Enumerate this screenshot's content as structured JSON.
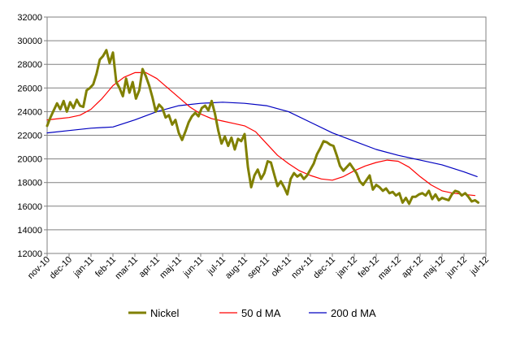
{
  "chart_data": {
    "type": "line",
    "title": "",
    "xlabel": "",
    "ylabel": "",
    "ylim": [
      12000,
      32000
    ],
    "yticks": [
      12000,
      14000,
      16000,
      18000,
      20000,
      22000,
      24000,
      26000,
      28000,
      30000,
      32000
    ],
    "ytick_labels": [
      "12000",
      "14000",
      "16000",
      "18000",
      "20000",
      "22000",
      "24000",
      "26000",
      "28000",
      "30000",
      "32000"
    ],
    "xtick_labels": [
      "nov-10",
      "dec-10",
      "jan-11",
      "feb-11",
      "mar-11",
      "apr-11",
      "maj-11",
      "jun-11",
      "jul-11",
      "aug-11",
      "sep-11",
      "okt-11",
      "nov-11",
      "dec-11",
      "jan-12",
      "feb-12",
      "mar-12",
      "apr-12",
      "maj-12",
      "jun-12",
      "jul-12"
    ],
    "grid": {
      "horizontal": true,
      "vertical": false
    },
    "legend_position": "bottom",
    "series": [
      {
        "name": "Nickel",
        "color": "#808000",
        "x": [
          0,
          0.15,
          0.3,
          0.45,
          0.6,
          0.75,
          0.9,
          1.05,
          1.2,
          1.35,
          1.5,
          1.65,
          1.8,
          1.95,
          2.1,
          2.25,
          2.4,
          2.55,
          2.7,
          2.85,
          3.0,
          3.15,
          3.3,
          3.45,
          3.6,
          3.75,
          3.9,
          4.05,
          4.2,
          4.35,
          4.5,
          4.65,
          4.8,
          4.95,
          5.1,
          5.25,
          5.4,
          5.55,
          5.7,
          5.85,
          6.0,
          6.15,
          6.3,
          6.45,
          6.6,
          6.75,
          6.9,
          7.05,
          7.2,
          7.35,
          7.5,
          7.65,
          7.8,
          7.95,
          8.1,
          8.25,
          8.4,
          8.55,
          8.7,
          8.85,
          9.0,
          9.15,
          9.3,
          9.45,
          9.6,
          9.75,
          9.9,
          10.05,
          10.2,
          10.35,
          10.5,
          10.65,
          10.8,
          10.95,
          11.1,
          11.25,
          11.4,
          11.55,
          11.7,
          11.85,
          12.0,
          12.15,
          12.3,
          12.45,
          12.6,
          12.75,
          12.9,
          13.05,
          13.2,
          13.35,
          13.5,
          13.65,
          13.8,
          13.95,
          14.1,
          14.25,
          14.4,
          14.55,
          14.7,
          14.85,
          15.0,
          15.15,
          15.3,
          15.45,
          15.6,
          15.75,
          15.9,
          16.05,
          16.2,
          16.35,
          16.5,
          16.65,
          16.8,
          16.95,
          17.1,
          17.25,
          17.4,
          17.55,
          17.7,
          17.85,
          18.0,
          18.15,
          18.3,
          18.45,
          18.6,
          18.75,
          18.9,
          19.05,
          19.2,
          19.35,
          19.5,
          19.65
        ],
        "values": [
          22800,
          23500,
          24100,
          24700,
          24200,
          24900,
          24000,
          24800,
          24300,
          25000,
          24500,
          24400,
          25800,
          26000,
          26300,
          27200,
          28400,
          28700,
          29200,
          28100,
          29000,
          26500,
          26000,
          25300,
          26800,
          25600,
          26500,
          25100,
          25800,
          27600,
          27000,
          26200,
          25200,
          24000,
          24600,
          24300,
          23500,
          23700,
          22900,
          23300,
          22200,
          21600,
          22300,
          23100,
          23600,
          23900,
          23600,
          24300,
          24500,
          24100,
          24900,
          23800,
          22400,
          21300,
          21900,
          21100,
          21800,
          20800,
          21700,
          21500,
          22100,
          19300,
          17600,
          18600,
          19100,
          18300,
          18800,
          19800,
          19700,
          18700,
          17700,
          18100,
          17600,
          17000,
          18300,
          18800,
          18500,
          18700,
          18300,
          18600,
          19100,
          19600,
          20400,
          20900,
          21500,
          21400,
          21200,
          21100,
          20300,
          19400,
          19000,
          19300,
          19600,
          19200,
          18800,
          18100,
          17800,
          18200,
          18600,
          17400,
          17800,
          17600,
          17300,
          17500,
          17100,
          17200,
          16900,
          17100,
          16300,
          16700,
          16200,
          16800,
          16800,
          17000,
          17100,
          16900,
          17300,
          16600,
          17000,
          16500,
          16700,
          16600,
          16500,
          17000,
          17300,
          17200,
          16900,
          17100,
          16800,
          16400,
          16500,
          16300
        ]
      },
      {
        "name": "50 d MA",
        "color": "#ff0000",
        "x": [
          0,
          0.5,
          1.0,
          1.5,
          2.0,
          2.5,
          3.0,
          3.5,
          4.0,
          4.5,
          5.0,
          5.5,
          6.0,
          6.5,
          7.0,
          7.5,
          8.0,
          8.5,
          9.0,
          9.5,
          10.0,
          10.5,
          11.0,
          11.5,
          12.0,
          12.5,
          13.0,
          13.5,
          14.0,
          14.5,
          15.0,
          15.5,
          16.0,
          16.5,
          17.0,
          17.5,
          18.0,
          18.5,
          19.0,
          19.5
        ],
        "values": [
          23300,
          23400,
          23500,
          23700,
          24200,
          25100,
          26200,
          26900,
          27300,
          27300,
          26800,
          26000,
          25200,
          24400,
          23800,
          23400,
          23200,
          23000,
          22800,
          22300,
          21300,
          20300,
          19600,
          19000,
          18600,
          18300,
          18200,
          18500,
          19000,
          19400,
          19700,
          19900,
          19800,
          19300,
          18500,
          17800,
          17300,
          17100,
          17000,
          16900
        ]
      },
      {
        "name": "200 d MA",
        "color": "#0000c0",
        "x": [
          0,
          1,
          2,
          3,
          4,
          5,
          6,
          7,
          8,
          9,
          10,
          11,
          12,
          13,
          14,
          15,
          16,
          17,
          18,
          19,
          19.6
        ],
        "values": [
          22200,
          22400,
          22600,
          22700,
          23300,
          24000,
          24500,
          24700,
          24800,
          24700,
          24500,
          24000,
          23100,
          22200,
          21500,
          20800,
          20300,
          19900,
          19500,
          18900,
          18500
        ]
      }
    ]
  }
}
